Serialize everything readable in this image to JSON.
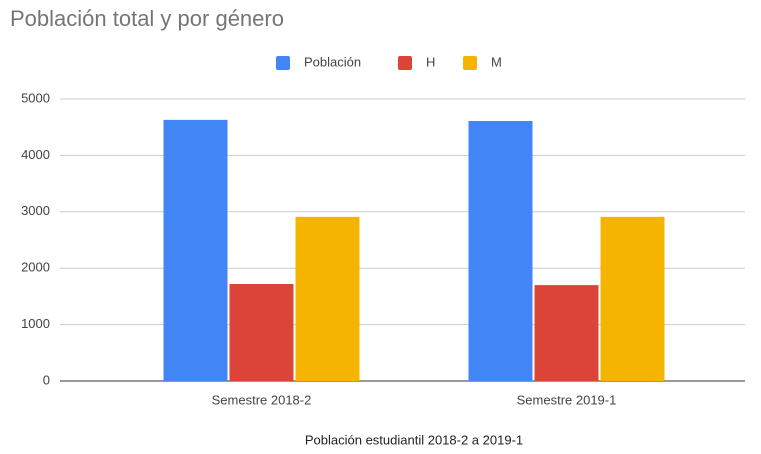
{
  "chart_data": {
    "type": "bar",
    "title": "Población total y por género",
    "x_label": "Población estudiantil 2018-2 a 2019-1",
    "categories": [
      "Semestre 2018-2",
      "Semestre 2019-1"
    ],
    "series": [
      {
        "name": "Población",
        "color": "#4285f4",
        "values": [
          4630,
          4610
        ]
      },
      {
        "name": "H",
        "color": "#db4437",
        "values": [
          1720,
          1700
        ]
      },
      {
        "name": "M",
        "color": "#f4b400",
        "values": [
          2910,
          2910
        ]
      }
    ],
    "ylim": [
      0,
      5000
    ],
    "yticks": [
      0,
      1000,
      2000,
      3000,
      4000,
      5000
    ],
    "grid": true,
    "legend": "top"
  }
}
